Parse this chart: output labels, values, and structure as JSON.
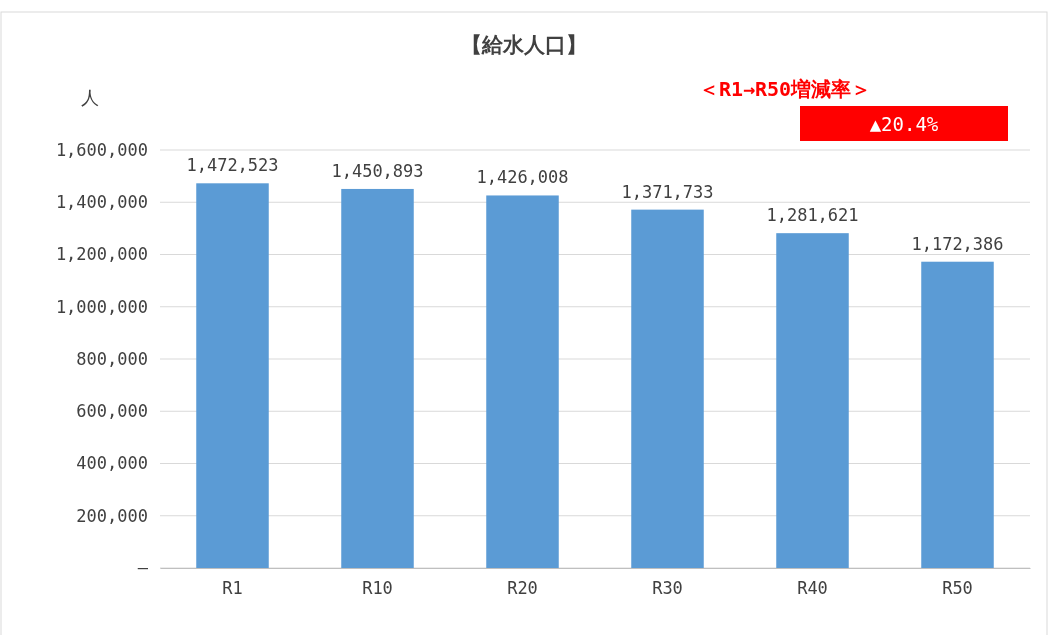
{
  "chart_data": {
    "type": "bar",
    "title": "【給水人口】",
    "ylabel": "人",
    "categories": [
      "R1",
      "R10",
      "R20",
      "R30",
      "R40",
      "R50"
    ],
    "values": [
      1472523,
      1450893,
      1426008,
      1371733,
      1281621,
      1172386
    ],
    "value_labels": [
      "1,472,523",
      "1,450,893",
      "1,426,008",
      "1,371,733",
      "1,281,621",
      "1,172,386"
    ],
    "color": "#5b9bd5",
    "ylim": [
      0,
      1600000
    ],
    "yticks": [
      {
        "value": 0,
        "label": "–"
      },
      {
        "value": 200000,
        "label": "200,000"
      },
      {
        "value": 400000,
        "label": "400,000"
      },
      {
        "value": 600000,
        "label": "600,000"
      },
      {
        "value": 800000,
        "label": "800,000"
      },
      {
        "value": 1000000,
        "label": "1,000,000"
      },
      {
        "value": 1200000,
        "label": "1,200,000"
      },
      {
        "value": 1400000,
        "label": "1,400,000"
      },
      {
        "value": 1600000,
        "label": "1,600,000"
      }
    ],
    "grid": "y",
    "annotations": [
      "＜R1→R50増減率＞",
      "▲20.4%"
    ]
  }
}
